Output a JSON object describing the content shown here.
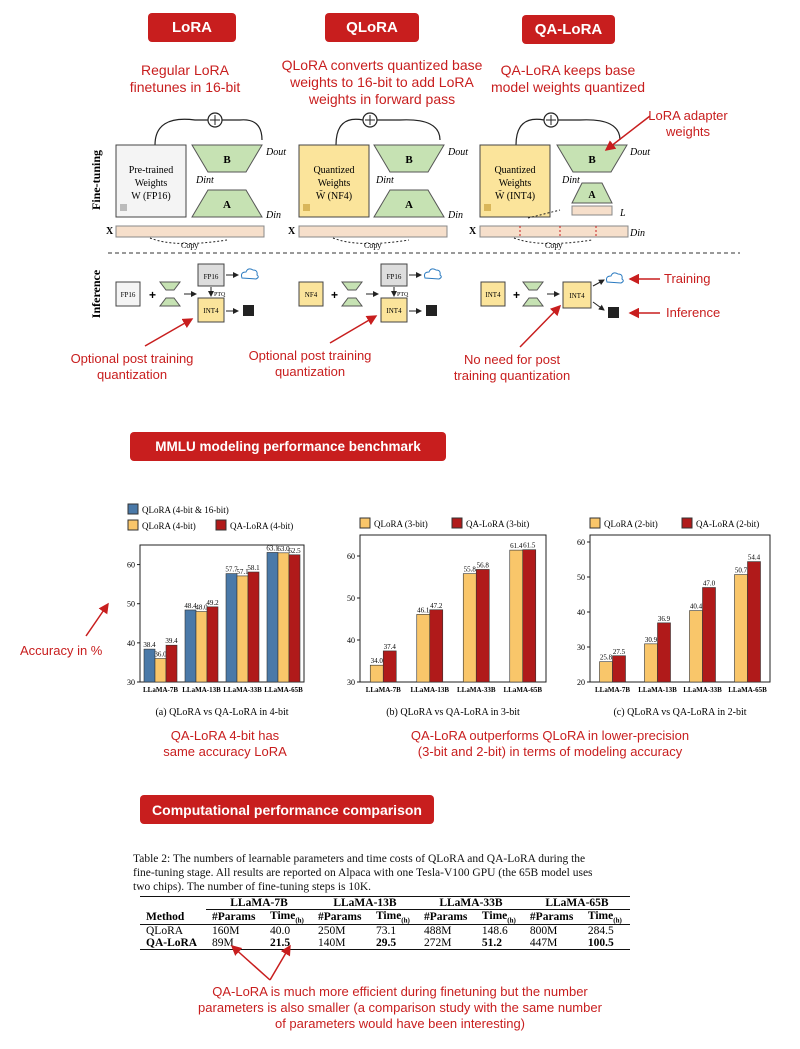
{
  "header": {
    "lora_title": "LoRA",
    "qlora_title": "QLoRA",
    "qalora_title": "QA-LoRA",
    "lora_desc": [
      "Regular LoRA",
      "finetunes in 16-bit"
    ],
    "qlora_desc": [
      "QLoRA converts quantized base",
      "weights to 16-bit to add LoRA",
      "weights in forward pass"
    ],
    "qalora_desc": [
      "QA-LoRA keeps base",
      "model weights quantized"
    ]
  },
  "diagram": {
    "finetuning_label": "Fine-tuning",
    "inference_label": "Inference",
    "lora_box": [
      "Pre-trained",
      "Weights",
      "W (FP16)"
    ],
    "qlora_box": [
      "Quantized",
      "Weights",
      "W̃ (NF4)"
    ],
    "qalora_box": [
      "Quantized",
      "Weights",
      "W̃ (INT4)"
    ],
    "B": "B",
    "A": "A",
    "d_out": "Dout",
    "d_int": "Dint",
    "d_in": "Din",
    "x": "X",
    "copy": "Copy",
    "L": "L",
    "adapter_note": [
      "LoRA adapter",
      "weights"
    ],
    "fp16": "FP16",
    "nf4": "NF4",
    "int4": "INT4",
    "ptq": "PTQ",
    "training_note": "Training",
    "inference_note": "Inference",
    "lora_inf_note": [
      "Optional post training",
      "quantization"
    ],
    "qlora_inf_note": [
      "Optional post training",
      "quantization"
    ],
    "qalora_inf_note": [
      "No need for post",
      "training quantization"
    ]
  },
  "mmlu": {
    "banner": "MMLU modeling performance benchmark",
    "accuracy_note": "Accuracy in %",
    "note_4bit": [
      "QA-LoRA 4-bit has",
      "same accuracy LoRA"
    ],
    "note_low": [
      "QA-LoRA outperforms QLoRA in lower-precision",
      "(3-bit and 2-bit) in terms of modeling accuracy"
    ]
  },
  "chart_data": [
    {
      "type": "bar",
      "title": "(a) QLoRA vs QA-LoRA in 4-bit",
      "categories": [
        "LLaMA-7B",
        "LLaMA-13B",
        "LLaMA-33B",
        "LLaMA-65B"
      ],
      "series": [
        {
          "name": "QLoRA (4-bit & 16-bit)",
          "values": [
            38.4,
            48.4,
            57.7,
            63.1
          ],
          "color": "#4a79a8"
        },
        {
          "name": "QLoRA (4-bit)",
          "values": [
            36.0,
            48.0,
            57.1,
            63.0
          ],
          "color": "#f9c66a"
        },
        {
          "name": "QA-LoRA (4-bit)",
          "values": [
            39.4,
            49.2,
            58.1,
            62.5
          ],
          "color": "#b01a1a"
        }
      ],
      "labels": [
        [
          "38.4",
          "48.4",
          "57.7",
          "63.1"
        ],
        [
          "36.0",
          "48.0",
          "57.1",
          "63.0"
        ],
        [
          "39.4",
          "49.2",
          "58.1",
          "62.5"
        ]
      ],
      "yticks": [
        30,
        40,
        50,
        60
      ],
      "ylim": [
        30,
        65
      ]
    },
    {
      "type": "bar",
      "title": "(b) QLoRA vs QA-LoRA in 3-bit",
      "categories": [
        "LLaMA-7B",
        "LLaMA-13B",
        "LLaMA-33B",
        "LLaMA-65B"
      ],
      "series": [
        {
          "name": "QLoRA (3-bit)",
          "values": [
            34.0,
            46.1,
            55.8,
            61.4
          ],
          "color": "#f9c66a"
        },
        {
          "name": "QA-LoRA (3-bit)",
          "values": [
            37.4,
            47.2,
            56.8,
            61.5
          ],
          "color": "#b01a1a"
        }
      ],
      "labels": [
        [
          "34.0",
          "46.1",
          "55.8",
          "61.4"
        ],
        [
          "37.4",
          "47.2",
          "56.8",
          "61.5"
        ]
      ],
      "yticks": [
        30,
        40,
        50,
        60
      ],
      "ylim": [
        30,
        65
      ]
    },
    {
      "type": "bar",
      "title": "(c) QLoRA vs QA-LoRA in 2-bit",
      "categories": [
        "LLaMA-7B",
        "LLaMA-13B",
        "LLaMA-33B",
        "LLaMA-65B"
      ],
      "series": [
        {
          "name": "QLoRA (2-bit)",
          "values": [
            25.8,
            30.9,
            40.4,
            50.7
          ],
          "color": "#f9c66a"
        },
        {
          "name": "QA-LoRA (2-bit)",
          "values": [
            27.5,
            36.9,
            47.0,
            54.4
          ],
          "color": "#b01a1a"
        }
      ],
      "labels": [
        [
          "25.8",
          "30.9",
          "40.4",
          "50.7"
        ],
        [
          "27.5",
          "36.9",
          "47.0",
          "54.4"
        ]
      ],
      "yticks": [
        20,
        30,
        40,
        50,
        60
      ],
      "ylim": [
        20,
        62
      ]
    }
  ],
  "comp": {
    "banner": "Computational performance comparison",
    "caption": [
      "Table 2: The numbers of learnable parameters and time costs of QLoRA and QA-LoRA during the",
      "fine-tuning stage. All results are reported on Alpaca with one Tesla-V100 GPU (the 65B model uses",
      "two chips). The number of fine-tuning steps is 10K."
    ],
    "models": [
      "LLaMA-7B",
      "LLaMA-13B",
      "LLaMA-33B",
      "LLaMA-65B"
    ],
    "method_header": "Method",
    "params_header": "#Params",
    "time_header": "Time",
    "time_sub": "(h)",
    "rows": [
      {
        "method": "QLoRA",
        "cells": [
          "160M",
          "40.0",
          "250M",
          "73.1",
          "488M",
          "148.6",
          "800M",
          "284.5"
        ],
        "bold": false
      },
      {
        "method": "QA-LoRA",
        "cells": [
          "89M",
          "21.5",
          "140M",
          "29.5",
          "272M",
          "51.2",
          "447M",
          "100.5"
        ],
        "bold": true
      }
    ],
    "note": [
      "QA-LoRA is much more efficient during finetuning but the number",
      "parameters is also smaller (a comparison study with the same number",
      "of parameters would have been interesting)"
    ]
  }
}
